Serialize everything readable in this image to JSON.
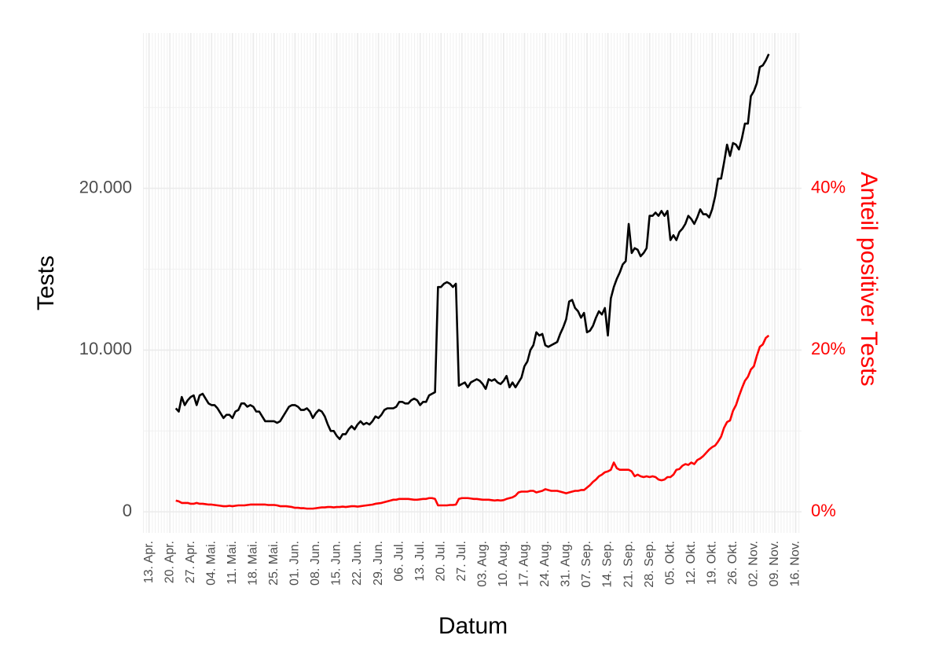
{
  "chart_data": {
    "type": "line",
    "x_label": "Datum",
    "y_label": "Tests",
    "y2_label": "Anteil positiver Tests",
    "x": [
      "22. Apr.",
      "23. Apr.",
      "24. Apr.",
      "25. Apr.",
      "26. Apr.",
      "27. Apr.",
      "28. Apr.",
      "29. Apr.",
      "30. Apr.",
      "01. Mai.",
      "02. Mai.",
      "03. Mai.",
      "04. Mai.",
      "05. Mai.",
      "06. Mai.",
      "07. Mai.",
      "08. Mai.",
      "09. Mai.",
      "10. Mai.",
      "11. Mai.",
      "12. Mai.",
      "13. Mai.",
      "14. Mai.",
      "15. Mai.",
      "16. Mai.",
      "17. Mai.",
      "18. Mai.",
      "19. Mai.",
      "20. Mai.",
      "21. Mai.",
      "22. Mai.",
      "23. Mai.",
      "24. Mai.",
      "25. Mai.",
      "26. Mai.",
      "27. Mai.",
      "28. Mai.",
      "29. Mai.",
      "30. Mai.",
      "31. Mai.",
      "01. Jun.",
      "02. Jun.",
      "03. Jun.",
      "04. Jun.",
      "05. Jun.",
      "06. Jun.",
      "07. Jun.",
      "08. Jun.",
      "09. Jun.",
      "10. Jun.",
      "11. Jun.",
      "12. Jun.",
      "13. Jun.",
      "14. Jun.",
      "15. Jun.",
      "16. Jun.",
      "17. Jun.",
      "18. Jun.",
      "19. Jun.",
      "20. Jun.",
      "21. Jun.",
      "22. Jun.",
      "23. Jun.",
      "24. Jun.",
      "25. Jun.",
      "26. Jun.",
      "27. Jun.",
      "28. Jun.",
      "29. Jun.",
      "30. Jun.",
      "01. Jul.",
      "02. Jul.",
      "03. Jul.",
      "04. Jul.",
      "05. Jul.",
      "06. Jul.",
      "07. Jul.",
      "08. Jul.",
      "09. Jul.",
      "10. Jul.",
      "11. Jul.",
      "12. Jul.",
      "13. Jul.",
      "14. Jul.",
      "15. Jul.",
      "16. Jul.",
      "17. Jul.",
      "18. Jul.",
      "19. Jul.",
      "20. Jul.",
      "21. Jul.",
      "22. Jul.",
      "23. Jul.",
      "24. Jul.",
      "25. Jul.",
      "26. Jul.",
      "27. Jul.",
      "28. Jul.",
      "29. Jul.",
      "30. Jul.",
      "31. Jul.",
      "01. Aug.",
      "02. Aug.",
      "03. Aug.",
      "04. Aug.",
      "05. Aug.",
      "06. Aug.",
      "07. Aug.",
      "08. Aug.",
      "09. Aug.",
      "10. Aug.",
      "11. Aug.",
      "12. Aug.",
      "13. Aug.",
      "14. Aug.",
      "15. Aug.",
      "16. Aug.",
      "17. Aug.",
      "18. Aug.",
      "19. Aug.",
      "20. Aug.",
      "21. Aug.",
      "22. Aug.",
      "23. Aug.",
      "24. Aug.",
      "25. Aug.",
      "26. Aug.",
      "27. Aug.",
      "28. Aug.",
      "29. Aug.",
      "30. Aug.",
      "31. Aug.",
      "01. Sep.",
      "02. Sep.",
      "03. Sep.",
      "04. Sep.",
      "05. Sep.",
      "06. Sep.",
      "07. Sep.",
      "08. Sep.",
      "09. Sep.",
      "10. Sep.",
      "11. Sep.",
      "12. Sep.",
      "13. Sep.",
      "14. Sep.",
      "15. Sep.",
      "16. Sep.",
      "17. Sep.",
      "18. Sep.",
      "19. Sep.",
      "20. Sep.",
      "21. Sep.",
      "22. Sep.",
      "23. Sep.",
      "24. Sep.",
      "25. Sep.",
      "26. Sep.",
      "27. Sep.",
      "28. Sep.",
      "29. Sep.",
      "30. Sep.",
      "01. Okt.",
      "02. Okt.",
      "03. Okt.",
      "04. Okt.",
      "05. Okt.",
      "06. Okt.",
      "07. Okt.",
      "08. Okt.",
      "09. Okt.",
      "10. Okt.",
      "11. Okt.",
      "12. Okt.",
      "13. Okt.",
      "14. Okt.",
      "15. Okt.",
      "16. Okt.",
      "17. Okt.",
      "18. Okt.",
      "19. Okt.",
      "20. Okt.",
      "21. Okt.",
      "22. Okt.",
      "23. Okt.",
      "24. Okt.",
      "25. Okt.",
      "26. Okt.",
      "27. Okt.",
      "28. Okt.",
      "29. Okt.",
      "30. Okt.",
      "31. Okt.",
      "01. Nov.",
      "02. Nov.",
      "03. Nov.",
      "04. Nov.",
      "05. Nov.",
      "06. Nov.",
      "07. Nov."
    ],
    "series": [
      {
        "color": "#000000",
        "values": [
          6400,
          6200,
          7100,
          6600,
          6900,
          7100,
          7200,
          6600,
          7200,
          7300,
          7000,
          6700,
          6600,
          6600,
          6400,
          6100,
          5800,
          6000,
          6000,
          5800,
          6200,
          6300,
          6700,
          6700,
          6500,
          6600,
          6500,
          6200,
          6200,
          5900,
          5600,
          5600,
          5600,
          5600,
          5500,
          5600,
          5900,
          6200,
          6500,
          6600,
          6600,
          6500,
          6300,
          6300,
          6400,
          6200,
          5800,
          6100,
          6300,
          6200,
          5900,
          5400,
          5000,
          5000,
          4700,
          4500,
          4800,
          4800,
          5100,
          5300,
          5100,
          5400,
          5600,
          5400,
          5500,
          5400,
          5600,
          5900,
          5800,
          6000,
          6300,
          6400,
          6400,
          6400,
          6500,
          6800,
          6800,
          6700,
          6700,
          6900,
          7000,
          6900,
          6600,
          6800,
          6800,
          7200,
          7300,
          7400,
          13900,
          13900,
          14100,
          14200,
          14100,
          13900,
          14100,
          7800,
          7900,
          8000,
          7700,
          8000,
          8100,
          8200,
          8100,
          7900,
          7600,
          8200,
          8100,
          8200,
          8000,
          7900,
          8100,
          8400,
          7700,
          8000,
          7700,
          8000,
          8300,
          9000,
          9300,
          10000,
          10300,
          11100,
          10900,
          11000,
          10300,
          10200,
          10300,
          10400,
          10500,
          11000,
          11400,
          11900,
          13000,
          13100,
          12600,
          12400,
          12000,
          12300,
          11100,
          11200,
          11500,
          12000,
          12400,
          12200,
          12600,
          10900,
          13200,
          13900,
          14400,
          14800,
          15300,
          15500,
          17800,
          16000,
          16300,
          16200,
          15800,
          16000,
          16300,
          18300,
          18300,
          18500,
          18300,
          18600,
          18300,
          18600,
          16800,
          17100,
          16800,
          17300,
          17500,
          17800,
          18300,
          18100,
          17800,
          18200,
          18700,
          18400,
          18400,
          18200,
          18700,
          19500,
          20600,
          20600,
          21600,
          22700,
          22000,
          22800,
          22700,
          22400,
          23100,
          24000,
          24000,
          25700,
          26000,
          26500,
          27500,
          27600,
          27900,
          28300
        ]
      },
      {
        "color": "#ff0000",
        "axis": "y2",
        "values": [
          1.4,
          1.3,
          1.1,
          1.1,
          1.1,
          1.0,
          1.0,
          1.1,
          1.0,
          1.0,
          0.95,
          0.9,
          0.9,
          0.85,
          0.8,
          0.75,
          0.7,
          0.7,
          0.75,
          0.7,
          0.75,
          0.8,
          0.8,
          0.8,
          0.85,
          0.9,
          0.9,
          0.9,
          0.9,
          0.9,
          0.9,
          0.85,
          0.85,
          0.85,
          0.8,
          0.7,
          0.7,
          0.7,
          0.65,
          0.6,
          0.5,
          0.5,
          0.45,
          0.45,
          0.4,
          0.4,
          0.4,
          0.45,
          0.5,
          0.55,
          0.55,
          0.6,
          0.6,
          0.55,
          0.6,
          0.6,
          0.65,
          0.6,
          0.65,
          0.7,
          0.7,
          0.65,
          0.7,
          0.75,
          0.8,
          0.85,
          0.9,
          1.0,
          1.05,
          1.1,
          1.2,
          1.3,
          1.4,
          1.5,
          1.5,
          1.6,
          1.6,
          1.6,
          1.6,
          1.55,
          1.5,
          1.5,
          1.55,
          1.6,
          1.6,
          1.7,
          1.7,
          1.6,
          0.8,
          0.8,
          0.8,
          0.8,
          0.85,
          0.85,
          0.9,
          1.6,
          1.7,
          1.7,
          1.7,
          1.65,
          1.6,
          1.6,
          1.55,
          1.5,
          1.5,
          1.5,
          1.45,
          1.4,
          1.45,
          1.4,
          1.45,
          1.6,
          1.7,
          1.8,
          2.0,
          2.4,
          2.5,
          2.5,
          2.5,
          2.6,
          2.6,
          2.4,
          2.5,
          2.6,
          2.8,
          2.7,
          2.6,
          2.6,
          2.6,
          2.5,
          2.4,
          2.3,
          2.4,
          2.5,
          2.6,
          2.6,
          2.7,
          2.7,
          3.0,
          3.3,
          3.7,
          4.0,
          4.4,
          4.6,
          4.9,
          5.0,
          5.2,
          6.1,
          5.4,
          5.2,
          5.2,
          5.2,
          5.2,
          5.0,
          4.4,
          4.6,
          4.4,
          4.3,
          4.4,
          4.3,
          4.4,
          4.3,
          4.0,
          3.9,
          4.0,
          4.3,
          4.3,
          4.6,
          5.2,
          5.3,
          5.7,
          5.9,
          5.8,
          6.1,
          5.9,
          6.4,
          6.6,
          6.9,
          7.3,
          7.7,
          8.0,
          8.2,
          8.7,
          9.3,
          10.4,
          11.1,
          11.3,
          12.5,
          13.2,
          14.3,
          15.3,
          16.2,
          16.7,
          17.6,
          18.0,
          19.3,
          20.4,
          20.7,
          21.5,
          21.8
        ]
      }
    ],
    "xlim": [
      "11. Apr.",
      "18. Nov."
    ],
    "xticks": [
      "13. Apr.",
      "20. Apr.",
      "27. Apr.",
      "04. Mai.",
      "11. Mai.",
      "18. Mai.",
      "25. Mai.",
      "01. Jun.",
      "08. Jun.",
      "15. Jun.",
      "22. Jun.",
      "29. Jun.",
      "06. Jul.",
      "13. Jul.",
      "20. Jul.",
      "27. Jul.",
      "03. Aug.",
      "10. Aug.",
      "17. Aug.",
      "24. Aug.",
      "31. Aug.",
      "07. Sep.",
      "14. Sep.",
      "21. Sep.",
      "28. Sep.",
      "05. Okt.",
      "12. Okt.",
      "19. Okt.",
      "26. Okt.",
      "02. Nov.",
      "09. Nov.",
      "16. Nov."
    ],
    "ylim": [
      -1300,
      29600
    ],
    "yticks": [
      0,
      {
        "value": 10000,
        "label": "10.000"
      },
      {
        "value": 20000,
        "label": "20.000"
      }
    ],
    "yticks_minor": [
      5000,
      15000,
      25000
    ],
    "y2lim": [
      -2.6,
      59.2
    ],
    "y2ticks": [
      {
        "value": 0,
        "label": "0%"
      },
      {
        "value": 20,
        "label": "20%"
      },
      {
        "value": 40,
        "label": "40%"
      }
    ],
    "grid": true
  }
}
